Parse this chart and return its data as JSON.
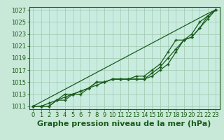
{
  "title": "Graphe pression niveau de la mer (hPa)",
  "bg_color": "#c8e8d8",
  "plot_bg_color": "#c8ece0",
  "grid_color": "#a0c8b0",
  "line_color": "#1a5c1a",
  "xlim": [
    -0.5,
    23.5
  ],
  "ylim": [
    1010.5,
    1027.5
  ],
  "xticks": [
    0,
    1,
    2,
    3,
    4,
    5,
    6,
    7,
    8,
    9,
    10,
    11,
    12,
    13,
    14,
    15,
    16,
    17,
    18,
    19,
    20,
    21,
    22,
    23
  ],
  "yticks": [
    1011,
    1013,
    1015,
    1017,
    1019,
    1021,
    1023,
    1025,
    1027
  ],
  "line_straight": [
    1011,
    1011.7,
    1012.4,
    1013.1,
    1013.8,
    1014.5,
    1015.2,
    1015.9,
    1016.6,
    1017.3,
    1018.0,
    1018.7,
    1019.4,
    1020.1,
    1020.8,
    1021.5,
    1022.2,
    1022.9,
    1023.6,
    1024.3,
    1025.0,
    1025.7,
    1026.4,
    1027.0
  ],
  "line1": [
    1011,
    1011,
    1011,
    1012,
    1012,
    1013,
    1013,
    1014,
    1015,
    1015,
    1015.5,
    1015.5,
    1015.5,
    1015.5,
    1015.5,
    1016,
    1017,
    1018,
    1020,
    1022,
    1022.5,
    1024,
    1025.5,
    1027
  ],
  "line2": [
    1011,
    1011,
    1011.5,
    1012,
    1012.5,
    1013,
    1013.5,
    1014,
    1014.5,
    1015,
    1015.5,
    1015.5,
    1015.5,
    1015.5,
    1015.5,
    1016.5,
    1017.5,
    1019,
    1020.5,
    1022,
    1023,
    1025,
    1026,
    1027
  ],
  "line3": [
    1011,
    1011,
    1011,
    1012,
    1013,
    1013,
    1013.5,
    1014,
    1015,
    1015,
    1015.5,
    1015.5,
    1015.5,
    1016,
    1016,
    1017,
    1018,
    1020,
    1022,
    1022,
    1022.5,
    1024,
    1026,
    1027
  ],
  "title_fontsize": 8,
  "tick_fontsize": 6
}
